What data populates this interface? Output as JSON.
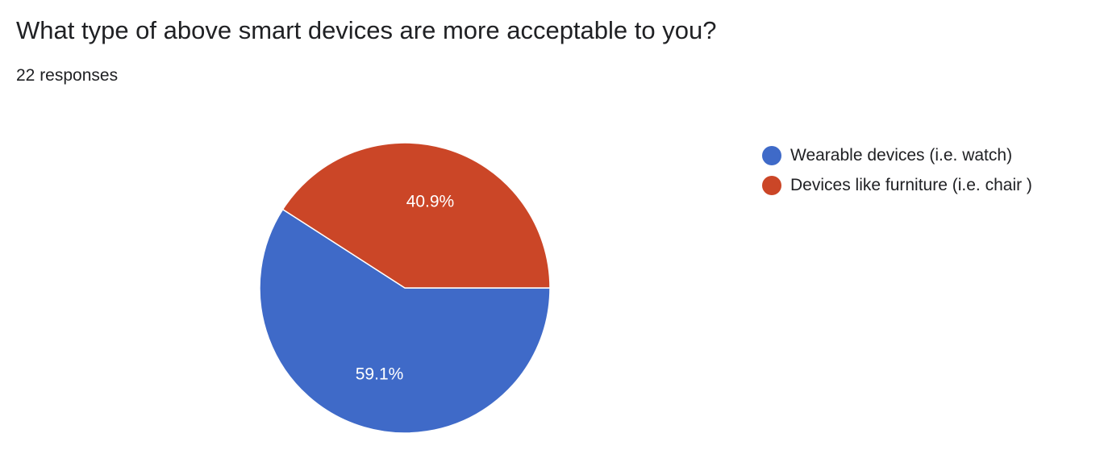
{
  "question": {
    "title": "What type of above smart devices are more acceptable to you?",
    "response_count": "22 responses"
  },
  "chart_data": {
    "type": "pie",
    "title": "What type of above smart devices are more acceptable to you?",
    "categories": [
      "Wearable devices (i.e. watch)",
      "Devices like furniture (i.e. chair )"
    ],
    "values": [
      59.1,
      40.9
    ],
    "labels": [
      "59.1%",
      "40.9%"
    ],
    "colors": [
      "#3f6ac8",
      "#cb4627"
    ],
    "legend_position": "right"
  }
}
